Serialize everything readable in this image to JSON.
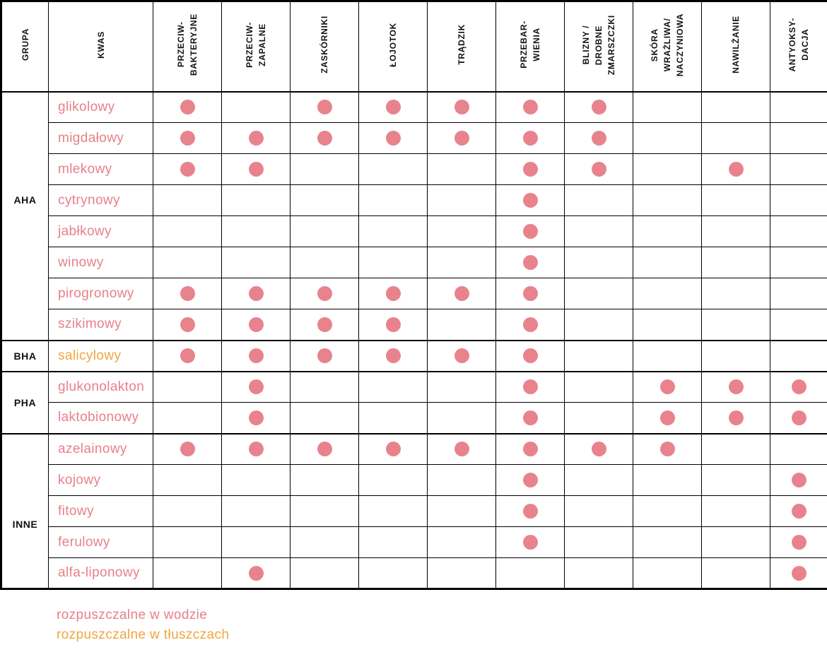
{
  "chart_data": {
    "type": "table",
    "columns": [
      {
        "id": "grupa",
        "label": "GRUPA"
      },
      {
        "id": "kwas",
        "label": "KWAS"
      },
      {
        "id": "przeciwbakteryjne",
        "label": "PRZECIW-\nBAKTERYJNE"
      },
      {
        "id": "przeciwzapalne",
        "label": "PRZECIW-\nZAPALNE"
      },
      {
        "id": "zaskorniki",
        "label": "ZASKÓRNIKI"
      },
      {
        "id": "lojotok",
        "label": "ŁOJOTOK"
      },
      {
        "id": "tradzik",
        "label": "TRĄDZIK"
      },
      {
        "id": "przebarwienia",
        "label": "PRZEBAR-\nWIENIA"
      },
      {
        "id": "blizny-drobne-zmarszczki",
        "label": "BLIZNY /\nDROBNE\nZMARSZCZKI"
      },
      {
        "id": "skora-wrazliwa-naczyniowa",
        "label": "SKÓRA\nWRAŻLIWA/\nNACZYNIOWA"
      },
      {
        "id": "nawilzanie",
        "label": "NAWILŻANIE"
      },
      {
        "id": "antyoksydacja",
        "label": "ANTYOKSY-\nDACJA"
      }
    ],
    "groups": [
      {
        "name": "AHA",
        "acids": [
          {
            "name": "glikolowy",
            "solubility": "water",
            "marks": [
              1,
              0,
              1,
              1,
              1,
              1,
              1,
              0,
              0,
              0
            ]
          },
          {
            "name": "migdałowy",
            "solubility": "water",
            "marks": [
              1,
              1,
              1,
              1,
              1,
              1,
              1,
              0,
              0,
              0
            ]
          },
          {
            "name": "mlekowy",
            "solubility": "water",
            "marks": [
              1,
              1,
              0,
              0,
              0,
              1,
              1,
              0,
              1,
              0
            ]
          },
          {
            "name": "cytrynowy",
            "solubility": "water",
            "marks": [
              0,
              0,
              0,
              0,
              0,
              1,
              0,
              0,
              0,
              0
            ]
          },
          {
            "name": "jabłkowy",
            "solubility": "water",
            "marks": [
              0,
              0,
              0,
              0,
              0,
              1,
              0,
              0,
              0,
              0
            ]
          },
          {
            "name": "winowy",
            "solubility": "water",
            "marks": [
              0,
              0,
              0,
              0,
              0,
              1,
              0,
              0,
              0,
              0
            ]
          },
          {
            "name": "pirogronowy",
            "solubility": "water",
            "marks": [
              1,
              1,
              1,
              1,
              1,
              1,
              0,
              0,
              0,
              0
            ]
          },
          {
            "name": "szikimowy",
            "solubility": "water",
            "marks": [
              1,
              1,
              1,
              1,
              0,
              1,
              0,
              0,
              0,
              0
            ]
          }
        ]
      },
      {
        "name": "BHA",
        "acids": [
          {
            "name": "salicylowy",
            "solubility": "fat",
            "marks": [
              1,
              1,
              1,
              1,
              1,
              1,
              0,
              0,
              0,
              0
            ]
          }
        ]
      },
      {
        "name": "PHA",
        "acids": [
          {
            "name": "glukonolakton",
            "solubility": "water",
            "marks": [
              0,
              1,
              0,
              0,
              0,
              1,
              0,
              1,
              1,
              1
            ]
          },
          {
            "name": "laktobionowy",
            "solubility": "water",
            "marks": [
              0,
              1,
              0,
              0,
              0,
              1,
              0,
              1,
              1,
              1
            ]
          }
        ]
      },
      {
        "name": "INNE",
        "acids": [
          {
            "name": "azelainowy",
            "solubility": "water",
            "marks": [
              1,
              1,
              1,
              1,
              1,
              1,
              1,
              1,
              0,
              0
            ]
          },
          {
            "name": "kojowy",
            "solubility": "water",
            "marks": [
              0,
              0,
              0,
              0,
              0,
              1,
              0,
              0,
              0,
              1
            ]
          },
          {
            "name": "fitowy",
            "solubility": "water",
            "marks": [
              0,
              0,
              0,
              0,
              0,
              1,
              0,
              0,
              0,
              1
            ]
          },
          {
            "name": "ferulowy",
            "solubility": "water",
            "marks": [
              0,
              0,
              0,
              0,
              0,
              1,
              0,
              0,
              0,
              1
            ]
          },
          {
            "name": "alfa-liponowy",
            "solubility": "water",
            "marks": [
              0,
              1,
              0,
              0,
              0,
              0,
              0,
              0,
              0,
              1
            ]
          }
        ]
      }
    ]
  },
  "legend": {
    "water_soluble": "rozpuszczalne w wodzie",
    "fat_soluble": "rozpuszczalne w tłuszczach"
  },
  "colors": {
    "water_text": "#E8808A",
    "fat_text": "#F2A541",
    "dot": "#E8838D",
    "border": "#000000"
  }
}
